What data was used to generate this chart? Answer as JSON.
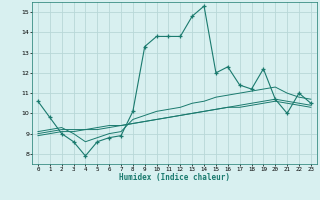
{
  "xlabel": "Humidex (Indice chaleur)",
  "x_values": [
    0,
    1,
    2,
    3,
    4,
    5,
    6,
    7,
    8,
    9,
    10,
    11,
    12,
    13,
    14,
    15,
    16,
    17,
    18,
    19,
    20,
    21,
    22,
    23
  ],
  "line1_y": [
    10.6,
    9.8,
    9.0,
    8.6,
    7.9,
    8.6,
    8.8,
    8.9,
    10.1,
    13.3,
    13.8,
    13.8,
    13.8,
    14.8,
    15.3,
    12.0,
    12.3,
    11.4,
    11.2,
    12.2,
    10.7,
    10.0,
    11.0,
    10.5
  ],
  "line2_y": [
    9.1,
    9.2,
    9.3,
    9.0,
    8.6,
    8.8,
    9.0,
    9.1,
    9.7,
    9.9,
    10.1,
    10.2,
    10.3,
    10.5,
    10.6,
    10.8,
    10.9,
    11.0,
    11.1,
    11.2,
    11.3,
    11.0,
    10.8,
    10.7
  ],
  "line3_y": [
    9.0,
    9.1,
    9.2,
    9.2,
    9.2,
    9.3,
    9.4,
    9.4,
    9.5,
    9.6,
    9.7,
    9.8,
    9.9,
    10.0,
    10.1,
    10.2,
    10.3,
    10.4,
    10.5,
    10.6,
    10.7,
    10.6,
    10.5,
    10.4
  ],
  "line4_y": [
    8.9,
    9.0,
    9.1,
    9.1,
    9.2,
    9.2,
    9.3,
    9.4,
    9.5,
    9.6,
    9.7,
    9.8,
    9.9,
    10.0,
    10.1,
    10.2,
    10.3,
    10.3,
    10.4,
    10.5,
    10.6,
    10.5,
    10.4,
    10.3
  ],
  "line_color": "#1a7a6e",
  "bg_color": "#d8f0f0",
  "grid_color": "#b8d8d8",
  "ylim": [
    7.5,
    15.5
  ],
  "xlim": [
    -0.5,
    23.5
  ],
  "yticks": [
    8,
    9,
    10,
    11,
    12,
    13,
    14,
    15
  ],
  "xticks": [
    0,
    1,
    2,
    3,
    4,
    5,
    6,
    7,
    8,
    9,
    10,
    11,
    12,
    13,
    14,
    15,
    16,
    17,
    18,
    19,
    20,
    21,
    22,
    23
  ]
}
